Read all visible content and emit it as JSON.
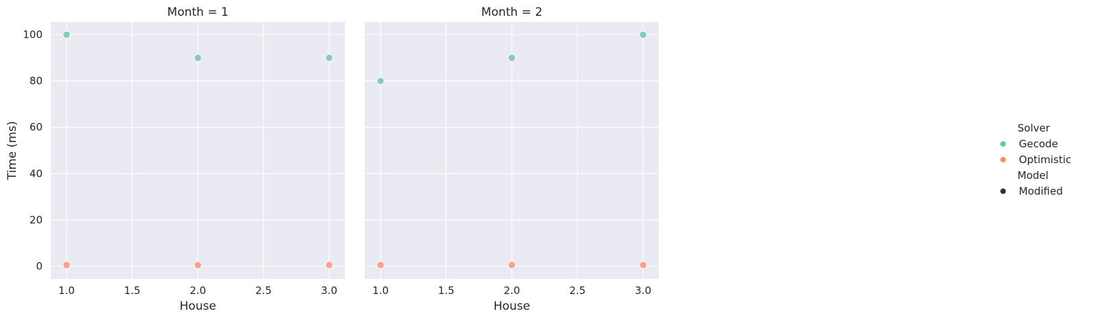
{
  "chart_data": {
    "type": "scatter",
    "facet_by": "Month",
    "xlabel": "House",
    "ylabel": "Time (ms)",
    "xlim": [
      0.88,
      3.12
    ],
    "ylim": [
      -5.5,
      105.5
    ],
    "xticks": [
      1.0,
      1.5,
      2.0,
      2.5,
      3.0
    ],
    "xtick_labels": [
      "1.0",
      "1.5",
      "2.0",
      "2.5",
      "3.0"
    ],
    "yticks": [
      0,
      20,
      40,
      60,
      80,
      100
    ],
    "ytick_labels": [
      "0",
      "20",
      "40",
      "60",
      "80",
      "100"
    ],
    "grid": true,
    "legend_placement": "right",
    "panels": [
      {
        "title": "Month = 1",
        "series": [
          {
            "name": "Gecode",
            "color": "#66c2a5",
            "x": [
              1.0,
              2.0,
              3.0
            ],
            "y": [
              100,
              90,
              90
            ]
          },
          {
            "name": "Optimistic",
            "color": "#fc8d62",
            "x": [
              1.0,
              2.0,
              3.0
            ],
            "y": [
              0.5,
              0.5,
              0.5
            ]
          }
        ]
      },
      {
        "title": "Month = 2",
        "series": [
          {
            "name": "Gecode",
            "color": "#66c2a5",
            "x": [
              1.0,
              2.0,
              3.0
            ],
            "y": [
              80,
              90,
              100
            ]
          },
          {
            "name": "Optimistic",
            "color": "#fc8d62",
            "x": [
              1.0,
              2.0,
              3.0
            ],
            "y": [
              0.5,
              0.5,
              0.5
            ]
          }
        ]
      }
    ],
    "legend": {
      "hue_title": "Solver",
      "hue_entries": [
        {
          "label": "Gecode",
          "color": "#66c2a5"
        },
        {
          "label": "Optimistic",
          "color": "#fc8d62"
        }
      ],
      "style_title": "Model",
      "style_entries": [
        {
          "label": "Modified",
          "color": "#333333"
        }
      ]
    }
  }
}
